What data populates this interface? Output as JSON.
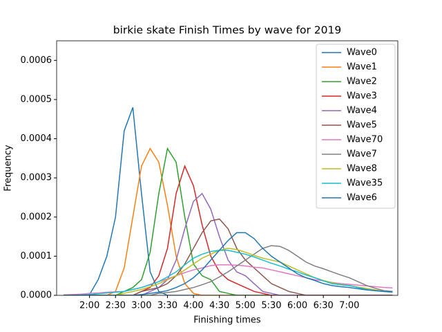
{
  "chart_data": {
    "type": "line",
    "title": "birkie skate Finish Times by wave for 2019",
    "x_label": "Finishing times",
    "y_label": "Frequency",
    "xlim": [
      82,
      476
    ],
    "ylim": [
      0,
      0.00065
    ],
    "xticks": [
      {
        "value": 120,
        "label": "2:00"
      },
      {
        "value": 150,
        "label": "2:30"
      },
      {
        "value": 180,
        "label": "3:00"
      },
      {
        "value": 210,
        "label": "3:30"
      },
      {
        "value": 240,
        "label": "4:00"
      },
      {
        "value": 270,
        "label": "4:30"
      },
      {
        "value": 300,
        "label": "5:00"
      },
      {
        "value": 330,
        "label": "5:30"
      },
      {
        "value": 360,
        "label": "6:00"
      },
      {
        "value": 390,
        "label": "6:30"
      },
      {
        "value": 420,
        "label": "7:00"
      }
    ],
    "yticks": [
      {
        "value": 0,
        "label": "0.0000"
      },
      {
        "value": 0.0001,
        "label": "0.0001"
      },
      {
        "value": 0.0002,
        "label": "0.0002"
      },
      {
        "value": 0.0003,
        "label": "0.0003"
      },
      {
        "value": 0.0004,
        "label": "0.0004"
      },
      {
        "value": 0.0005,
        "label": "0.0005"
      },
      {
        "value": 0.0006,
        "label": "0.0006"
      }
    ],
    "legend": "upper right",
    "grid": false,
    "x": [
      90,
      100,
      110,
      120,
      130,
      140,
      150,
      160,
      170,
      180,
      190,
      200,
      210,
      220,
      230,
      240,
      250,
      260,
      270,
      280,
      290,
      300,
      310,
      320,
      330,
      340,
      350,
      360,
      370,
      380,
      390,
      400,
      410,
      420,
      430,
      440,
      450,
      460,
      470
    ],
    "series": [
      {
        "name": "Wave0",
        "color": "#1f77b4",
        "values": [
          0,
          0,
          0,
          2e-06,
          4e-05,
          0.0001,
          0.0002,
          0.00042,
          0.00048,
          0.00026,
          6e-05,
          1e-05,
          0,
          0,
          0,
          0,
          0,
          0,
          0,
          0,
          0,
          0,
          0,
          0,
          0,
          0,
          0,
          0,
          0,
          0,
          0,
          0,
          0,
          0,
          0,
          0,
          0,
          0,
          0
        ]
      },
      {
        "name": "Wave1",
        "color": "#ff7f0e",
        "values": [
          0,
          0,
          0,
          0,
          0,
          0,
          1e-05,
          7e-05,
          0.0002,
          0.00033,
          0.000375,
          0.00034,
          0.00023,
          0.0001,
          3e-05,
          5e-06,
          0,
          0,
          0,
          0,
          0,
          0,
          0,
          0,
          0,
          0,
          0,
          0,
          0,
          0,
          0,
          0,
          0,
          0,
          0,
          0,
          0,
          0,
          0
        ]
      },
      {
        "name": "Wave2",
        "color": "#2ca02c",
        "values": [
          0,
          0,
          0,
          0,
          0,
          0,
          0,
          1e-05,
          2e-05,
          4e-05,
          0.00011,
          0.00026,
          0.000375,
          0.00034,
          0.0002,
          8e-05,
          5e-05,
          4e-05,
          1e-05,
          5e-06,
          0,
          0,
          0,
          0,
          0,
          0,
          0,
          0,
          0,
          0,
          0,
          0,
          0,
          0,
          0,
          0,
          0,
          0,
          0
        ]
      },
      {
        "name": "Wave3",
        "color": "#d62728",
        "values": [
          0,
          0,
          0,
          0,
          0,
          0,
          0,
          0,
          0,
          1e-05,
          2e-05,
          5e-05,
          0.00012,
          0.00026,
          0.00033,
          0.00028,
          0.00018,
          0.0001,
          6e-05,
          4e-05,
          3e-05,
          2e-05,
          1e-05,
          5e-06,
          0,
          0,
          0,
          0,
          0,
          0,
          0,
          0,
          0,
          0,
          0,
          0,
          0,
          0,
          0
        ]
      },
      {
        "name": "Wave4",
        "color": "#9467bd",
        "values": [
          0,
          0,
          0,
          0,
          0,
          0,
          0,
          0,
          0,
          0,
          1e-05,
          2e-05,
          4e-05,
          9e-05,
          0.00017,
          0.00024,
          0.00026,
          0.00022,
          0.00015,
          9e-05,
          6e-05,
          5e-05,
          3e-05,
          1e-05,
          5e-06,
          0,
          0,
          0,
          0,
          0,
          0,
          0,
          0,
          0,
          0,
          0,
          0,
          0,
          0
        ]
      },
      {
        "name": "Wave5",
        "color": "#8c564b",
        "values": [
          0,
          0,
          0,
          0,
          0,
          0,
          0,
          0,
          0,
          1e-05,
          1.5e-05,
          2e-05,
          3e-05,
          5e-05,
          8e-05,
          0.00012,
          0.00016,
          0.00019,
          0.000195,
          0.00017,
          0.00012,
          9e-05,
          7e-05,
          5e-05,
          3e-05,
          2e-05,
          1e-05,
          5e-06,
          0,
          0,
          0,
          0,
          0,
          0,
          0,
          0,
          0,
          0,
          0
        ]
      },
      {
        "name": "Wave70",
        "color": "#e377c2",
        "values": [
          1e-06,
          2e-06,
          3e-06,
          5e-06,
          6e-06,
          8e-06,
          9e-06,
          1e-05,
          1.5e-05,
          2e-05,
          2.8e-05,
          3.5e-05,
          4.2e-05,
          5e-05,
          5.8e-05,
          6.5e-05,
          7e-05,
          7.6e-05,
          7.8e-05,
          7.8e-05,
          7.7e-05,
          7.5e-05,
          7.2e-05,
          7e-05,
          6.5e-05,
          6e-05,
          5.5e-05,
          5e-05,
          4.5e-05,
          4e-05,
          3.7e-05,
          3.3e-05,
          3e-05,
          2.8e-05,
          2.6e-05,
          2.4e-05,
          2.2e-05,
          2e-05,
          1.9e-05
        ]
      },
      {
        "name": "Wave7",
        "color": "#7f7f7f",
        "values": [
          0,
          0,
          0,
          0,
          0,
          0,
          0,
          0,
          0,
          0,
          0,
          5e-06,
          7e-06,
          1e-05,
          1.5e-05,
          2e-05,
          2.7e-05,
          3.5e-05,
          4.7e-05,
          6e-05,
          7.5e-05,
          9e-05,
          0.000105,
          0.00012,
          0.000127,
          0.000125,
          0.000115,
          0.0001,
          8.5e-05,
          7.5e-05,
          6.8e-05,
          6e-05,
          5.2e-05,
          4.5e-05,
          3.5e-05,
          2.5e-05,
          1.8e-05,
          1.2e-05,
          1e-05
        ]
      },
      {
        "name": "Wave8",
        "color": "#bcbd22",
        "values": [
          0,
          0,
          0,
          0,
          0,
          0,
          0,
          5e-06,
          1e-05,
          1.5e-05,
          2.2e-05,
          3e-05,
          4e-05,
          5e-05,
          6.5e-05,
          8e-05,
          9.5e-05,
          0.000105,
          0.000115,
          0.00012,
          0.000117,
          0.00011,
          0.000102,
          9.5e-05,
          9e-05,
          8.5e-05,
          7.5e-05,
          6.5e-05,
          5.5e-05,
          4.5e-05,
          3.8e-05,
          3.2e-05,
          2.8e-05,
          2.5e-05,
          2.1e-05,
          1.8e-05,
          1.4e-05,
          1e-05,
          8e-06
        ]
      },
      {
        "name": "Wave35",
        "color": "#17becf",
        "values": [
          0,
          0,
          1e-06,
          2e-06,
          4e-06,
          6e-06,
          8e-06,
          1e-05,
          1.5e-05,
          2e-05,
          2.7e-05,
          3.5e-05,
          4.7e-05,
          6e-05,
          7.8e-05,
          9.5e-05,
          0.000105,
          0.000112,
          0.000115,
          0.000115,
          0.00011,
          0.000105,
          9.8e-05,
          9e-05,
          8.2e-05,
          7.5e-05,
          6.7e-05,
          6e-05,
          5.2e-05,
          4.5e-05,
          3.7e-05,
          3e-05,
          2.7e-05,
          2.5e-05,
          2e-05,
          1.5e-05,
          1.2e-05,
          1e-05,
          8e-06
        ]
      },
      {
        "name": "Wave6",
        "color": "#1f77b4",
        "values": [
          0,
          0,
          0,
          0,
          0,
          0,
          0,
          0,
          0,
          2e-06,
          5e-06,
          8e-06,
          1.2e-05,
          2e-05,
          3e-05,
          4.5e-05,
          6.5e-05,
          9e-05,
          0.000115,
          0.00014,
          0.00016,
          0.00016,
          0.000145,
          0.00012,
          0.0001,
          8.5e-05,
          7e-05,
          5.5e-05,
          4.5e-05,
          3.8e-05,
          3e-05,
          2.5e-05,
          2.2e-05,
          2e-05,
          1.7e-05,
          1.4e-05,
          1.2e-05,
          1e-05,
          9e-06
        ]
      }
    ]
  }
}
